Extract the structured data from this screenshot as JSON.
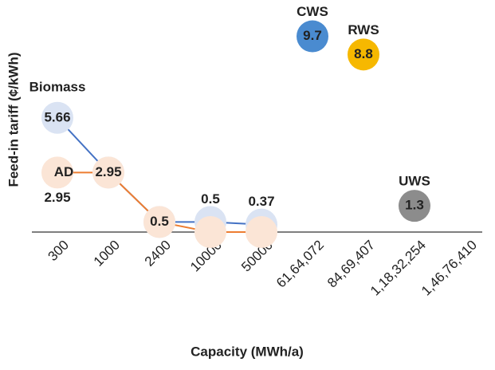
{
  "chart_data": {
    "type": "line",
    "x_label": "Capacity (MWh/a)",
    "y_label": "Feed-in tariff (¢/kWh)",
    "categories": [
      "300",
      "1000",
      "2400",
      "10000",
      "50000",
      "61,64,072",
      "84,69,407",
      "1,18,32,254",
      "1,46,76,410"
    ],
    "ylim": [
      0,
      11.5
    ],
    "series": [
      {
        "name": "Biomass",
        "color": "#4472c4",
        "marker_color": "#dae3f3",
        "values": [
          5.66,
          2.95,
          0.5,
          0.5,
          0.37,
          null,
          null,
          null,
          null
        ]
      },
      {
        "name": "AD",
        "color": "#ed7d31",
        "marker_color": "#fbe5d6",
        "values": [
          2.95,
          2.95,
          0.5,
          0,
          0,
          null,
          null,
          null,
          null
        ]
      },
      {
        "name": "CWS",
        "color": "#4a8bd0",
        "marker_color": "#4a8bd0",
        "values": [
          null,
          null,
          null,
          null,
          null,
          9.7,
          null,
          null,
          null
        ]
      },
      {
        "name": "RWS",
        "color": "#f6b800",
        "marker_color": "#f6b800",
        "values": [
          null,
          null,
          null,
          null,
          null,
          null,
          8.8,
          null,
          null
        ]
      },
      {
        "name": "UWS",
        "color": "#8c8c8c",
        "marker_color": "#8c8c8c",
        "values": [
          null,
          null,
          null,
          null,
          null,
          null,
          null,
          1.3,
          null
        ]
      }
    ]
  }
}
